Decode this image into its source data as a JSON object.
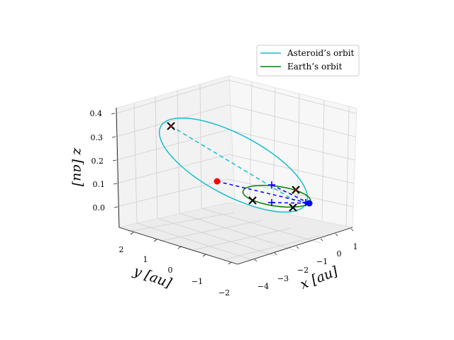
{
  "chart_data": {
    "type": "line",
    "projection": "3d",
    "axes": {
      "x": {
        "label": "x [au]",
        "ticks": [
          "−4",
          "−3",
          "−2",
          "−1",
          "0",
          "1"
        ]
      },
      "y": {
        "label": "y [au]",
        "ticks": [
          "−2",
          "−1",
          "0",
          "1",
          "2"
        ]
      },
      "z": {
        "label": "z [au]",
        "ticks": [
          "0.0",
          "0.1",
          "0.2",
          "0.3",
          "0.4"
        ]
      }
    },
    "grid": true,
    "legend": {
      "placement": "top-right",
      "entries": [
        {
          "label": "Asteroid’s orbit",
          "color": "#17becf"
        },
        {
          "label": "Earth’s orbit",
          "color": "#008000"
        }
      ]
    },
    "series": [
      {
        "name": "Asteroid’s orbit",
        "kind": "ellipse",
        "color": "#17becf"
      },
      {
        "name": "Earth’s orbit",
        "kind": "ellipse",
        "color": "#008000"
      }
    ],
    "markers": {
      "red_point": "#ff0000",
      "blue_point": "#0000ff",
      "cross_color": "#000000",
      "cross_fill": "#8b0000"
    }
  }
}
